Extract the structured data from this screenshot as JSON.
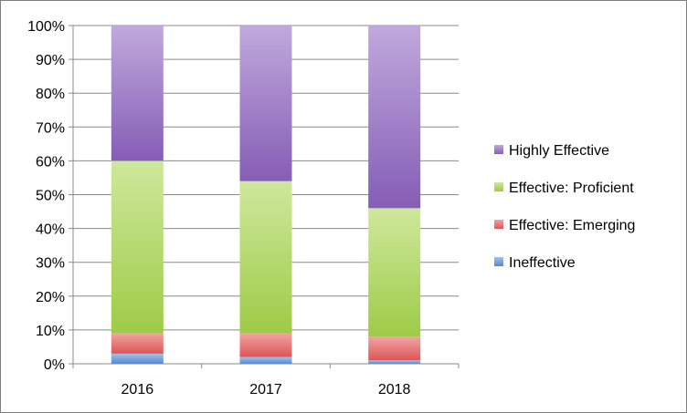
{
  "chart_data": {
    "type": "bar",
    "stacked": true,
    "percent_stacked": true,
    "categories": [
      "2016",
      "2017",
      "2018"
    ],
    "series": [
      {
        "name": "Ineffective",
        "values": [
          3,
          2,
          1
        ],
        "color": "#5b8fd9"
      },
      {
        "name": "Effective: Emerging",
        "values": [
          6,
          7,
          7
        ],
        "color": "#e85a5a"
      },
      {
        "name": "Effective: Proficient",
        "values": [
          51,
          45,
          38
        ],
        "color": "#a6d64b"
      },
      {
        "name": "Highly Effective",
        "values": [
          40,
          46,
          54
        ],
        "color": "#8c62c0"
      }
    ],
    "ylim": [
      0,
      100
    ],
    "y_ticks": [
      "0%",
      "10%",
      "20%",
      "30%",
      "40%",
      "50%",
      "60%",
      "70%",
      "80%",
      "90%",
      "100%"
    ],
    "grid": true,
    "legend_position": "right",
    "legend_order": [
      "Highly Effective",
      "Effective: Proficient",
      "Effective: Emerging",
      "Ineffective"
    ],
    "xlabel": "",
    "ylabel": "",
    "title": ""
  }
}
